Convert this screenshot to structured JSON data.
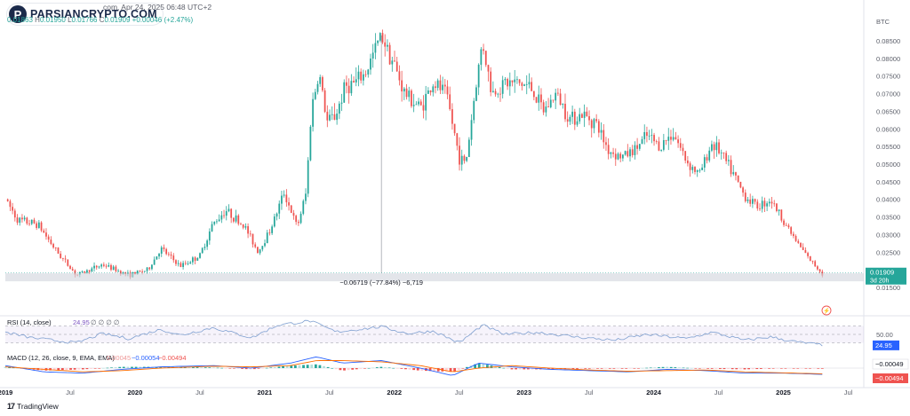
{
  "logo": {
    "mark": "P",
    "text": "PARSIANCRYPTO.COM"
  },
  "header": {
    "tail": "com, Apr 24, 2025 06:48 UTC+2"
  },
  "ohlc": {
    "o": "0.01863",
    "h_label": "H",
    "h": "0.01950",
    "l_label": "L",
    "l": "0.01766",
    "c_label": "C",
    "c": "0.01909",
    "chg": "+0.00046 (+2.47%)"
  },
  "price_axis": {
    "unit": "BTC"
  },
  "current_price": {
    "value": "0.01909",
    "countdown": "3d 20h"
  },
  "measure": {
    "label": "−0.06719 (−77.84%) −6,719"
  },
  "rsi": {
    "label": "RSI (14, close)",
    "value_text": "24.95",
    "dots": "∅ ∅ ∅ ∅",
    "level_label": "50.00",
    "badge": "24.95"
  },
  "macd": {
    "label": "MACD (12, 26, close, 9, EMA, EMA)",
    "v1": "0.00045",
    "v2": "−0.00054",
    "v3": "−0.00494",
    "badge1": "−0.00049",
    "badge2": "−0.00494"
  },
  "watermark": {
    "text": "TradingView"
  },
  "colors": {
    "up": "#26a69a",
    "down": "#ef5350",
    "rsi": "#7e9fd0",
    "macd": "#2962ff",
    "signal": "#ff6d00",
    "price_badge": "#26a69a"
  },
  "chart_data": {
    "type": "candlestick",
    "pair": "ETH/BTC",
    "unit": "BTC",
    "x_axis_labels": [
      "2019",
      "Jul",
      "2020",
      "Jul",
      "2021",
      "Jul",
      "2022",
      "Jul",
      "2023",
      "Jul",
      "2024",
      "Jul",
      "2025",
      "Jul"
    ],
    "x_label_positions": [
      2019.0,
      2019.5,
      2020.0,
      2020.5,
      2021.0,
      2021.5,
      2022.0,
      2022.5,
      2023.0,
      2023.5,
      2024.0,
      2024.5,
      2025.0,
      2025.5
    ],
    "x_range": [
      2019.0,
      2025.62
    ],
    "y_ticks": [
      "0.08500",
      "0.08000",
      "0.07500",
      "0.07000",
      "0.06500",
      "0.06000",
      "0.05500",
      "0.05000",
      "0.04500",
      "0.04000",
      "0.03500",
      "0.03000",
      "0.02500",
      "0.01500"
    ],
    "ylim": [
      0.014,
      0.0875
    ],
    "price_path": [
      [
        2019.0,
        0.04
      ],
      [
        2019.1,
        0.034
      ],
      [
        2019.25,
        0.033
      ],
      [
        2019.4,
        0.025
      ],
      [
        2019.55,
        0.0185
      ],
      [
        2019.75,
        0.0215
      ],
      [
        2019.95,
        0.0185
      ],
      [
        2020.1,
        0.02
      ],
      [
        2020.2,
        0.026
      ],
      [
        2020.35,
        0.021
      ],
      [
        2020.5,
        0.024
      ],
      [
        2020.6,
        0.033
      ],
      [
        2020.7,
        0.037
      ],
      [
        2020.85,
        0.032
      ],
      [
        2020.95,
        0.025
      ],
      [
        2021.05,
        0.032
      ],
      [
        2021.15,
        0.042
      ],
      [
        2021.25,
        0.032
      ],
      [
        2021.32,
        0.042
      ],
      [
        2021.36,
        0.066
      ],
      [
        2021.42,
        0.076
      ],
      [
        2021.48,
        0.062
      ],
      [
        2021.55,
        0.064
      ],
      [
        2021.62,
        0.072
      ],
      [
        2021.7,
        0.073
      ],
      [
        2021.78,
        0.076
      ],
      [
        2021.9,
        0.087
      ],
      [
        2022.0,
        0.078
      ],
      [
        2022.08,
        0.07
      ],
      [
        2022.2,
        0.066
      ],
      [
        2022.3,
        0.073
      ],
      [
        2022.4,
        0.07
      ],
      [
        2022.5,
        0.052
      ],
      [
        2022.55,
        0.05
      ],
      [
        2022.62,
        0.07
      ],
      [
        2022.68,
        0.085
      ],
      [
        2022.75,
        0.07
      ],
      [
        2022.85,
        0.073
      ],
      [
        2022.95,
        0.073
      ],
      [
        2023.05,
        0.072
      ],
      [
        2023.15,
        0.065
      ],
      [
        2023.25,
        0.07
      ],
      [
        2023.35,
        0.063
      ],
      [
        2023.45,
        0.064
      ],
      [
        2023.55,
        0.062
      ],
      [
        2023.65,
        0.054
      ],
      [
        2023.75,
        0.052
      ],
      [
        2023.85,
        0.054
      ],
      [
        2023.95,
        0.058
      ],
      [
        2024.05,
        0.055
      ],
      [
        2024.15,
        0.059
      ],
      [
        2024.25,
        0.051
      ],
      [
        2024.35,
        0.047
      ],
      [
        2024.45,
        0.056
      ],
      [
        2024.5,
        0.054
      ],
      [
        2024.6,
        0.048
      ],
      [
        2024.7,
        0.041
      ],
      [
        2024.8,
        0.038
      ],
      [
        2024.9,
        0.04
      ],
      [
        2025.0,
        0.034
      ],
      [
        2025.1,
        0.028
      ],
      [
        2025.2,
        0.023
      ],
      [
        2025.3,
        0.019
      ]
    ],
    "rsi": {
      "name": "RSI (14, close)",
      "levels": [
        70,
        50,
        30
      ],
      "ylim": [
        10,
        90
      ],
      "path": [
        [
          2019.0,
          55
        ],
        [
          2019.2,
          42
        ],
        [
          2019.4,
          35
        ],
        [
          2019.55,
          30
        ],
        [
          2019.75,
          52
        ],
        [
          2019.95,
          40
        ],
        [
          2020.2,
          62
        ],
        [
          2020.35,
          48
        ],
        [
          2020.6,
          66
        ],
        [
          2020.9,
          42
        ],
        [
          2021.1,
          72
        ],
        [
          2021.35,
          82
        ],
        [
          2021.55,
          56
        ],
        [
          2021.9,
          68
        ],
        [
          2022.1,
          52
        ],
        [
          2022.3,
          58
        ],
        [
          2022.5,
          30
        ],
        [
          2022.68,
          72
        ],
        [
          2022.85,
          50
        ],
        [
          2023.1,
          55
        ],
        [
          2023.4,
          44
        ],
        [
          2023.7,
          36
        ],
        [
          2023.95,
          50
        ],
        [
          2024.25,
          40
        ],
        [
          2024.45,
          55
        ],
        [
          2024.7,
          36
        ],
        [
          2024.9,
          44
        ],
        [
          2025.1,
          32
        ],
        [
          2025.3,
          25
        ]
      ]
    },
    "macd": {
      "name": "MACD (12, 26, close, 9, EMA, EMA)",
      "ylim": [
        -0.012,
        0.012
      ],
      "macd_path": [
        [
          2019.0,
          0.002
        ],
        [
          2019.3,
          -0.003
        ],
        [
          2019.6,
          -0.004
        ],
        [
          2019.9,
          -0.001
        ],
        [
          2020.2,
          0.001
        ],
        [
          2020.6,
          0.002
        ],
        [
          2020.9,
          0.0
        ],
        [
          2021.2,
          0.004
        ],
        [
          2021.4,
          0.009
        ],
        [
          2021.6,
          0.004
        ],
        [
          2021.9,
          0.006
        ],
        [
          2022.2,
          0.0
        ],
        [
          2022.45,
          -0.006
        ],
        [
          2022.65,
          0.004
        ],
        [
          2022.9,
          0.001
        ],
        [
          2023.2,
          -0.001
        ],
        [
          2023.5,
          -0.002
        ],
        [
          2023.8,
          -0.003
        ],
        [
          2024.1,
          -0.001
        ],
        [
          2024.4,
          -0.002
        ],
        [
          2024.7,
          -0.004
        ],
        [
          2025.0,
          -0.004
        ],
        [
          2025.3,
          -0.005
        ]
      ],
      "signal_path": [
        [
          2019.0,
          0.001
        ],
        [
          2019.3,
          -0.001
        ],
        [
          2019.6,
          -0.003
        ],
        [
          2019.9,
          -0.002
        ],
        [
          2020.2,
          0.0
        ],
        [
          2020.6,
          0.0015
        ],
        [
          2020.9,
          0.001
        ],
        [
          2021.2,
          0.002
        ],
        [
          2021.4,
          0.006
        ],
        [
          2021.6,
          0.006
        ],
        [
          2021.9,
          0.005
        ],
        [
          2022.2,
          0.002
        ],
        [
          2022.45,
          -0.003
        ],
        [
          2022.65,
          0.0
        ],
        [
          2022.9,
          0.002
        ],
        [
          2023.2,
          0.0
        ],
        [
          2023.5,
          -0.0015
        ],
        [
          2023.8,
          -0.0025
        ],
        [
          2024.1,
          -0.002
        ],
        [
          2024.4,
          -0.0015
        ],
        [
          2024.7,
          -0.003
        ],
        [
          2025.0,
          -0.0038
        ],
        [
          2025.3,
          -0.0045
        ]
      ]
    }
  }
}
